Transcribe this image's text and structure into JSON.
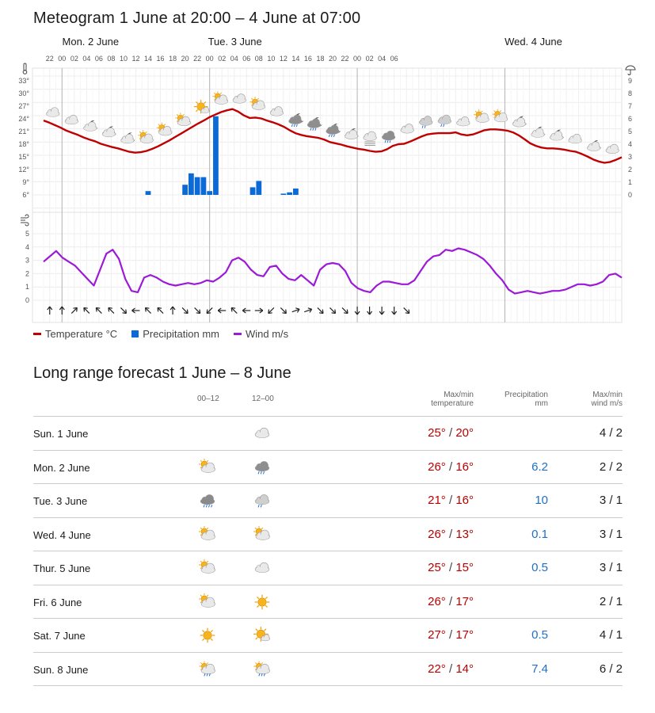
{
  "meteogram": {
    "title": "Meteogram 1 June at 20:00 – 4 June at 07:00",
    "days": [
      "Mon. 2 June",
      "Tue. 3 June",
      "Wed. 4 June"
    ],
    "hour_labels": [
      "22",
      "00",
      "02",
      "04",
      "06",
      "08",
      "10",
      "12",
      "14",
      "16",
      "18",
      "20",
      "22",
      "00",
      "02",
      "04",
      "06",
      "08",
      "10",
      "12",
      "14",
      "16",
      "18",
      "20",
      "22",
      "00",
      "02",
      "04",
      "06"
    ],
    "temp_ticks": [
      "33°",
      "30°",
      "27°",
      "24°",
      "21°",
      "18°",
      "15°",
      "12°",
      "9°",
      "6°"
    ],
    "precip_ticks": [
      "9",
      "8",
      "7",
      "6",
      "5",
      "4",
      "3",
      "2",
      "1",
      "0"
    ],
    "wind_ticks": [
      "5",
      "4",
      "3",
      "2",
      "1",
      "0"
    ],
    "legend": {
      "temperature": "Temperature °C",
      "precipitation": "Precipitation mm",
      "wind": "Wind m/s"
    },
    "colors": {
      "temperature": "#c00000",
      "precipitation": "#0b6ad6",
      "wind": "#9d19d8"
    }
  },
  "chart_data": {
    "type": "line",
    "x_hours_from_start_labels": "hourly, 1 June 21:00 to 4 June 07:00",
    "temperature_c": [
      23.6,
      23.1,
      22.5,
      21.9,
      21.2,
      20.7,
      20.2,
      19.6,
      19.1,
      18.7,
      18.1,
      17.7,
      17.3,
      17.0,
      16.6,
      16.2,
      16.0,
      16.1,
      16.4,
      16.9,
      17.5,
      18.2,
      18.9,
      19.7,
      20.5,
      21.3,
      22.1,
      22.9,
      23.6,
      24.4,
      25.0,
      25.6,
      26.0,
      26.3,
      25.7,
      24.8,
      24.2,
      24.3,
      24.1,
      23.6,
      23.2,
      22.7,
      22.1,
      21.3,
      20.6,
      20.2,
      19.9,
      19.7,
      19.5,
      19.1,
      18.5,
      18.2,
      17.9,
      17.5,
      17.2,
      16.9,
      16.7,
      16.4,
      16.2,
      16.3,
      16.8,
      17.6,
      18.0,
      18.1,
      18.6,
      19.2,
      19.8,
      20.3,
      20.5,
      20.6,
      20.6,
      20.6,
      20.8,
      20.3,
      20.1,
      20.3,
      20.8,
      21.3,
      21.5,
      21.5,
      21.4,
      21.2,
      20.8,
      20.1,
      19.2,
      18.2,
      17.6,
      17.2,
      17.0,
      17.0,
      16.9,
      16.7,
      16.4,
      16.2,
      15.7,
      15.1,
      14.4,
      13.9,
      13.6,
      13.8,
      14.3,
      14.9
    ],
    "precipitation_mm": [
      {
        "hour": "14",
        "value": 0.3
      },
      {
        "hour": "20",
        "value": 0.8
      },
      {
        "hour": "21",
        "value": 1.7
      },
      {
        "hour": "22",
        "value": 1.4
      },
      {
        "hour": "23",
        "value": 1.4
      },
      {
        "hour": "00",
        "value": 0.3
      },
      {
        "hour": "01",
        "value": 6.2
      },
      {
        "hour": "07",
        "value": 0.6
      },
      {
        "hour": "08",
        "value": 1.1
      },
      {
        "hour": "12",
        "value": 0.1
      },
      {
        "hour": "13",
        "value": 0.2
      },
      {
        "hour": "14",
        "value": 0.5
      }
    ],
    "wind_ms": [
      2.9,
      3.3,
      3.7,
      3.2,
      2.9,
      2.6,
      2.1,
      1.6,
      1.1,
      2.3,
      3.5,
      3.8,
      3.1,
      1.6,
      0.7,
      0.6,
      1.7,
      1.9,
      1.7,
      1.4,
      1.2,
      1.1,
      1.2,
      1.3,
      1.2,
      1.3,
      1.5,
      1.4,
      1.7,
      2.1,
      3.0,
      3.2,
      2.9,
      2.3,
      1.9,
      1.8,
      2.5,
      2.6,
      2.0,
      1.6,
      1.5,
      1.9,
      1.5,
      1.1,
      2.3,
      2.7,
      2.8,
      2.7,
      2.2,
      1.3,
      0.9,
      0.7,
      0.6,
      1.1,
      1.4,
      1.4,
      1.3,
      1.2,
      1.2,
      1.5,
      2.2,
      2.9,
      3.3,
      3.4,
      3.8,
      3.7,
      3.9,
      3.8,
      3.6,
      3.4,
      3.1,
      2.6,
      2.0,
      1.5,
      0.8,
      0.5,
      0.6,
      0.7,
      0.6,
      0.5,
      0.6,
      0.7,
      0.7,
      0.8,
      1.0,
      1.2,
      1.2,
      1.1,
      1.2,
      1.4,
      1.9,
      2.0,
      1.7
    ],
    "temp_ylim": [
      6,
      33
    ],
    "precip_ylim": [
      0,
      9
    ],
    "wind_ylim": [
      0,
      5
    ],
    "grid": true
  },
  "forecast": {
    "title": "Long range forecast 1 June – 8 June",
    "headers": {
      "col1": "00–12",
      "col2": "12–00",
      "temp": [
        "Max/min",
        "temperature"
      ],
      "precip": [
        "Precipitation",
        "mm"
      ],
      "wind": [
        "Max/min",
        "wind m/s"
      ]
    },
    "rows": [
      {
        "day": "Sun. 1 June",
        "icon1": "",
        "icon2": "cloudy-icon",
        "hi": "25°",
        "lo": "20°",
        "precip": "",
        "wind": "4 / 2"
      },
      {
        "day": "Mon. 2 June",
        "icon1": "partly-cloudy-icon",
        "icon2": "rain-showers-icon",
        "hi": "26°",
        "lo": "16°",
        "precip": "6.2",
        "wind": "2 / 2"
      },
      {
        "day": "Tue. 3 June",
        "icon1": "heavy-rain-icon",
        "icon2": "light-rain-icon",
        "hi": "21°",
        "lo": "16°",
        "precip": "10",
        "wind": "3 / 1"
      },
      {
        "day": "Wed. 4 June",
        "icon1": "partly-cloudy-icon",
        "icon2": "partly-cloudy-icon",
        "hi": "26°",
        "lo": "13°",
        "precip": "0.1",
        "wind": "3 / 1"
      },
      {
        "day": "Thur. 5 June",
        "icon1": "partly-cloudy-icon",
        "icon2": "cloudy-icon",
        "hi": "25°",
        "lo": "15°",
        "precip": "0.5",
        "wind": "3 / 1"
      },
      {
        "day": "Fri. 6 June",
        "icon1": "partly-cloudy-icon",
        "icon2": "sun-icon",
        "hi": "26°",
        "lo": "17°",
        "precip": "",
        "wind": "2 / 1"
      },
      {
        "day": "Sat. 7 June",
        "icon1": "sun-icon",
        "icon2": "fair-icon",
        "hi": "27°",
        "lo": "17°",
        "precip": "0.5",
        "wind": "4 / 1"
      },
      {
        "day": "Sun. 8 June",
        "icon1": "sun-showers-icon",
        "icon2": "sun-showers-icon",
        "hi": "22°",
        "lo": "14°",
        "precip": "7.4",
        "wind": "6 / 2"
      }
    ]
  }
}
